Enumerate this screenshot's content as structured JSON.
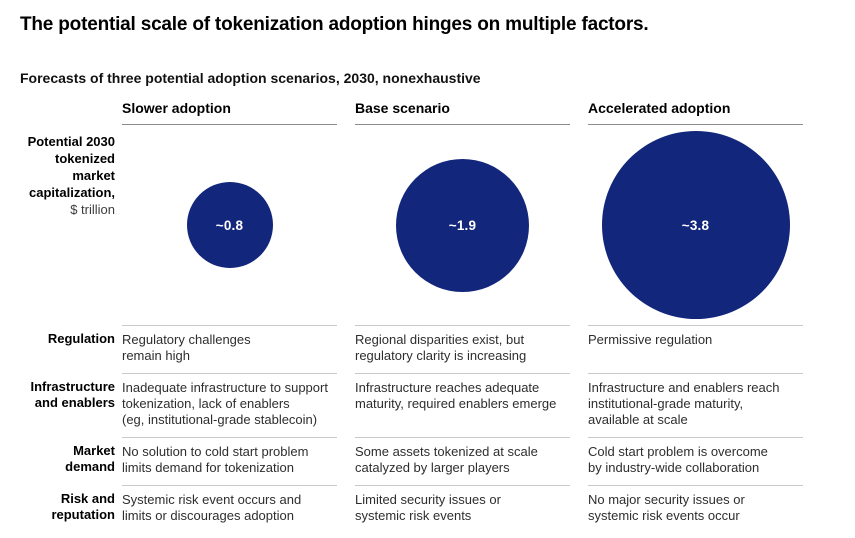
{
  "title": "The potential scale of tokenization adoption hinges on multiple factors.",
  "subtitle": "Forecasts of three potential adoption scenarios, 2030, nonexhaustive",
  "accent_color": "#12267C",
  "chart_data": {
    "type": "bubble",
    "title": "Forecasts of three potential adoption scenarios, 2030, nonexhaustive",
    "metric": "Potential 2030 tokenized market capitalization, $ trillion",
    "legend_position": "none",
    "grid": false,
    "scenarios": [
      {
        "name": "Slower adoption",
        "value": 0.8,
        "label": "~0.8"
      },
      {
        "name": "Base scenario",
        "value": 1.9,
        "label": "~1.9"
      },
      {
        "name": "Accelerated adoption",
        "value": 3.8,
        "label": "~3.8"
      }
    ]
  },
  "bubble_metric": {
    "bold_lines": "Potential 2030\ntokenized\nmarket\ncapitalization,",
    "unit": "$ trillion"
  },
  "factors": [
    {
      "label": "Regulation",
      "cells": [
        "Regulatory challenges\nremain high",
        "Regional disparities exist, but\nregulatory clarity is increasing",
        "Permissive regulation"
      ]
    },
    {
      "label": "Infrastructure\nand enablers",
      "cells": [
        "Inadequate infrastructure to support\ntokenization, lack of enablers\n(eg, institutional-grade stablecoin)",
        "Infrastructure reaches adequate\nmaturity, required enablers emerge",
        "Infrastructure and enablers reach\ninstitutional-grade maturity,\navailable at scale"
      ]
    },
    {
      "label": "Market\ndemand",
      "cells": [
        "No solution to cold start problem\nlimits demand for tokenization",
        "Some assets tokenized at scale\ncatalyzed by larger players",
        "Cold start problem is overcome\nby industry-wide collaboration"
      ]
    },
    {
      "label": "Risk and\nreputation",
      "cells": [
        "Systemic risk event occurs and\nlimits or discourages adoption",
        "Limited security issues or\nsystemic risk events",
        "No major security issues or\nsystemic risk events occur"
      ]
    }
  ]
}
